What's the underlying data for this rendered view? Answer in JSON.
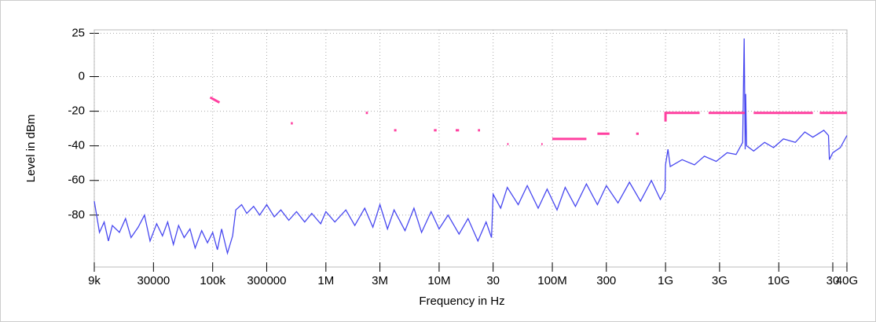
{
  "chart_data": {
    "type": "line",
    "xscale": "log",
    "grid": true,
    "xlabel": "Frequency in Hz",
    "ylabel": "Level in dBm",
    "xlim": [
      9000,
      40000000000
    ],
    "ylim": [
      -110,
      27
    ],
    "xticks": [
      {
        "value": 9000,
        "label": "9k"
      },
      30000,
      {
        "value": 100000,
        "label": "100k"
      },
      300000,
      {
        "value": 1000000,
        "label": "1M"
      },
      {
        "value": 3000000,
        "label": "3M"
      },
      {
        "value": 10000000,
        "label": "10M"
      },
      {
        "value": 30000000,
        "label": "30"
      },
      {
        "value": 100000000,
        "label": "100M"
      },
      {
        "value": 300000000,
        "label": "300"
      },
      {
        "value": 1000000000,
        "label": "1G"
      },
      {
        "value": 3000000000,
        "label": "3G"
      },
      {
        "value": 10000000000,
        "label": "10G"
      },
      {
        "value": 30000000000,
        "label": "30"
      },
      {
        "value": 40000000000,
        "label": "40G"
      }
    ],
    "yticks": [
      25,
      0,
      -20,
      -40,
      -60,
      -80
    ],
    "series": [
      {
        "color": "#4848f0",
        "x": [
          9000,
          10000,
          11000,
          12000,
          13000,
          15000,
          17000,
          19000,
          22000,
          25000,
          28000,
          32000,
          36000,
          40000,
          45000,
          50000,
          56000,
          63000,
          70000,
          80000,
          90000,
          100000,
          110000,
          120000,
          135000,
          150000,
          160000,
          180000,
          200000,
          230000,
          260000,
          300000,
          350000,
          400000,
          470000,
          550000,
          650000,
          750000,
          900000,
          1000000,
          1200000,
          1500000,
          1800000,
          2200000,
          2600000,
          3000000,
          3500000,
          4000000,
          5000000,
          6000000,
          7000000,
          8500000,
          10000000,
          12000000,
          15000000,
          18000000,
          22000000,
          26000000,
          29000000,
          30000000,
          35000000,
          40000000,
          50000000,
          60000000,
          75000000,
          90000000,
          110000000,
          130000000,
          160000000,
          200000000,
          250000000,
          300000000,
          380000000,
          480000000,
          600000000,
          750000000,
          900000000,
          990000000,
          1000000000,
          1050000000,
          1100000000,
          1400000000,
          1800000000,
          2200000000,
          2800000000,
          3500000000,
          4200000000,
          4800000000,
          4950000000,
          5050000000,
          5100000000,
          5200000000,
          6000000000,
          7500000000,
          9000000000,
          11000000000,
          14000000000,
          17000000000,
          20000000000,
          25000000000,
          27500000000,
          28000000000,
          30000000000,
          35000000000,
          40000000000
        ],
        "values": [
          -72,
          -90,
          -84,
          -95,
          -86,
          -90,
          -82,
          -93,
          -87,
          -80,
          -95,
          -85,
          -92,
          -84,
          -97,
          -86,
          -93,
          -88,
          -99,
          -89,
          -96,
          -90,
          -100,
          -88,
          -102,
          -92,
          -77,
          -74,
          -79,
          -75,
          -80,
          -74,
          -81,
          -77,
          -83,
          -78,
          -84,
          -79,
          -85,
          -78,
          -84,
          -77,
          -86,
          -76,
          -87,
          -74,
          -88,
          -77,
          -89,
          -76,
          -90,
          -78,
          -88,
          -80,
          -91,
          -82,
          -95,
          -84,
          -93,
          -68,
          -76,
          -64,
          -74,
          -63,
          -76,
          -65,
          -77,
          -64,
          -75,
          -62,
          -74,
          -63,
          -73,
          -61,
          -72,
          -60,
          -71,
          -66,
          -51,
          -42,
          -52,
          -48,
          -51,
          -46,
          -49,
          -44,
          -45,
          -38,
          22,
          -42,
          -10,
          -40,
          -43,
          -38,
          -41,
          -36,
          -38,
          -32,
          -35,
          -31,
          -34,
          -48,
          -44,
          -41,
          -34
        ]
      },
      {
        "color": "#ff40a0",
        "x": [
          95000,
          115000,
          200000,
          490000,
          510000,
          1000000,
          2250000,
          2350000,
          3000000,
          4000000,
          4200000,
          5000000,
          9000000,
          9500000,
          10000000,
          14000000,
          15000000,
          17000000,
          22000000,
          23000000,
          25000000,
          40000000,
          41000000,
          60000000,
          80000000,
          82000000,
          90000000,
          100000000,
          200000000,
          220000000,
          250000000,
          320000000,
          400000000,
          550000000,
          580000000,
          700000000,
          1000000000,
          1000000000,
          2000000000,
          2200000000,
          2400000000,
          5000000000,
          5500000000,
          6000000000,
          20000000000,
          21000000000,
          23000000000,
          40000000000
        ],
        "values": [
          -12,
          -15,
          null,
          -27,
          -27,
          null,
          -21,
          -21,
          null,
          -31,
          -31,
          null,
          -31,
          -31,
          null,
          -31,
          -31,
          null,
          -31,
          -31,
          null,
          -39,
          -39,
          null,
          -39,
          -39,
          null,
          -36,
          -36,
          null,
          -33,
          -33,
          null,
          -33,
          -33,
          null,
          -26,
          -21,
          -21,
          null,
          -21,
          -21,
          null,
          -21,
          -21,
          null,
          -21,
          -21
        ]
      }
    ]
  }
}
